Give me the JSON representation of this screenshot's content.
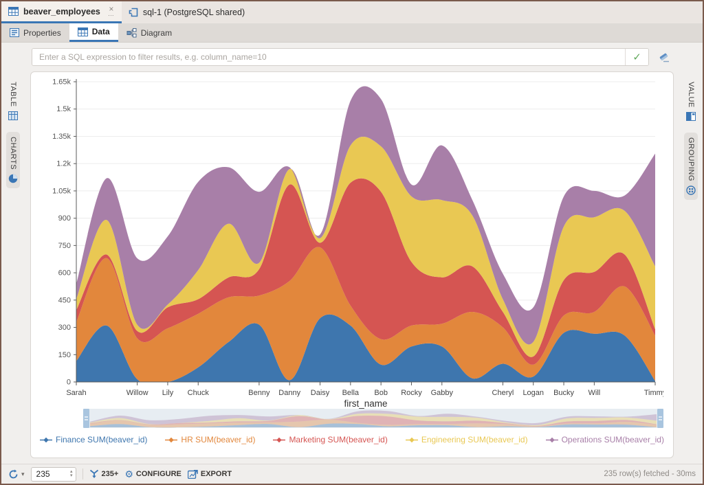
{
  "icons": {
    "close": "×",
    "overflow": "…",
    "check": "✓",
    "chevron_down": "▾",
    "spinner_up": "▴",
    "spinner_down": "▾",
    "gear": "⚙"
  },
  "main_tabs": [
    {
      "label": "beaver_employees",
      "active": true
    },
    {
      "label": "sql-1 (PostgreSQL shared)",
      "active": false
    }
  ],
  "view_tabs": [
    {
      "label": "Properties"
    },
    {
      "label": "Data",
      "active": true
    },
    {
      "label": "Diagram"
    }
  ],
  "filter": {
    "placeholder": "Enter a SQL expression to filter results, e.g. column_name=10"
  },
  "side_left": [
    {
      "label": "TABLE"
    },
    {
      "label": "CHARTS",
      "active": true
    }
  ],
  "side_right": [
    {
      "label": "VALUE"
    },
    {
      "label": "GROUPING",
      "active": true
    }
  ],
  "chart_data": {
    "type": "area",
    "stacked": true,
    "smooth": true,
    "title": "",
    "xlabel": "first_name",
    "ylabel": "",
    "ylim": [
      0,
      1650
    ],
    "grid": true,
    "legend_position": "bottom",
    "yticks": [
      "0",
      "150",
      "300",
      "450",
      "600",
      "750",
      "900",
      "1.05k",
      "1.2k",
      "1.35k",
      "1.5k",
      "1.65k"
    ],
    "categories": [
      "Sarah",
      "",
      "Willow",
      "Lily",
      "Chuck",
      "",
      "Benny",
      "Danny",
      "Daisy",
      "Bella",
      "Bob",
      "Rocky",
      "Gabby",
      "",
      "Cheryl",
      "Logan",
      "Bucky",
      "Will",
      "",
      "Timmy"
    ],
    "series": [
      {
        "name": "Finance SUM(beaver_id)",
        "color": "#3E76AE",
        "values": [
          115,
          310,
          15,
          0,
          80,
          220,
          315,
          10,
          350,
          310,
          95,
          195,
          195,
          20,
          100,
          30,
          270,
          265,
          255,
          5
        ]
      },
      {
        "name": "HR SUM(beaver_id)",
        "color": "#E2873C",
        "values": [
          215,
          370,
          225,
          295,
          295,
          245,
          160,
          545,
          390,
          110,
          140,
          115,
          125,
          365,
          200,
          65,
          95,
          120,
          270,
          250
        ]
      },
      {
        "name": "Marketing SUM(beaver_id)",
        "color": "#D55552",
        "values": [
          65,
          20,
          40,
          115,
          80,
          110,
          145,
          530,
          25,
          675,
          810,
          350,
          255,
          250,
          85,
          45,
          195,
          220,
          175,
          35
        ]
      },
      {
        "name": "Engineering SUM(beaver_id)",
        "color": "#E9C853",
        "values": [
          60,
          190,
          35,
          15,
          160,
          295,
          35,
          85,
          25,
          205,
          250,
          360,
          425,
          280,
          70,
          80,
          295,
          300,
          240,
          345
        ]
      },
      {
        "name": "Operations SUM(beaver_id)",
        "color": "#A87FA8",
        "values": [
          85,
          230,
          365,
          375,
          485,
          310,
          390,
          10,
          20,
          245,
          260,
          65,
          300,
          85,
          140,
          190,
          165,
          145,
          85,
          620
        ]
      }
    ]
  },
  "minimap": {
    "handle_color": "#a9c5df",
    "bg": "#e7edf2"
  },
  "toolbar": {
    "row_limit_value": "235",
    "fetch_more_label": "235+",
    "configure_label": "CONFIGURE",
    "export_label": "EXPORT",
    "status": "235 row(s) fetched - 30ms"
  }
}
